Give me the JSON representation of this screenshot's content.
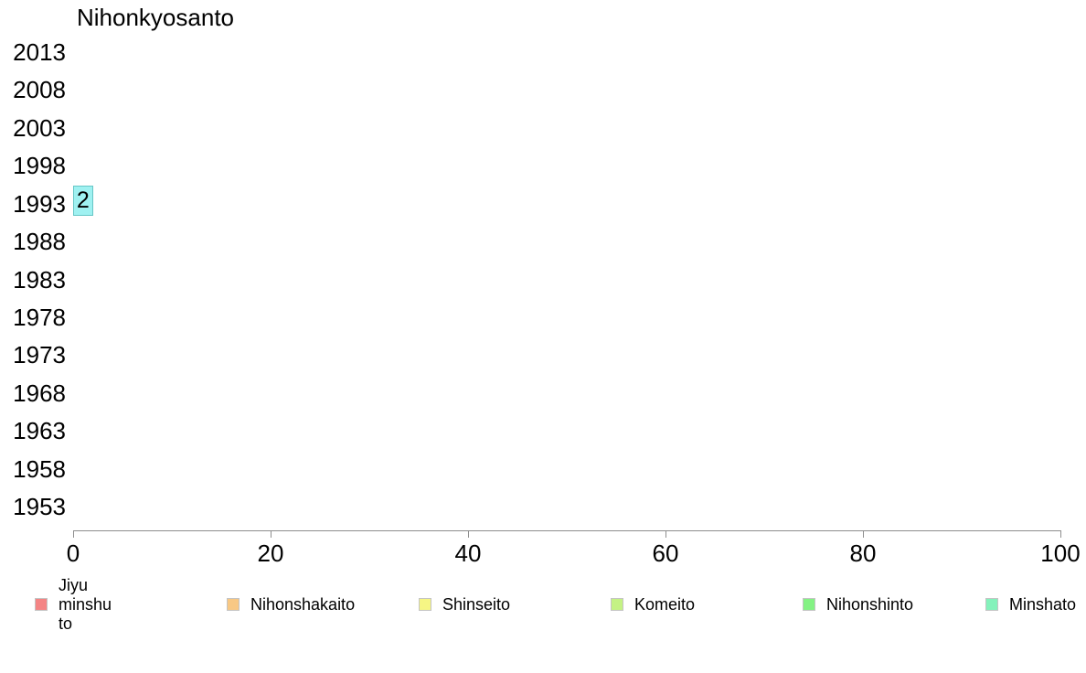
{
  "chart_data": {
    "type": "bar",
    "orientation": "horizontal",
    "title": "Nihonkyosanto",
    "categories": [
      "2013",
      "2008",
      "2003",
      "1998",
      "1993",
      "1988",
      "1983",
      "1978",
      "1973",
      "1968",
      "1963",
      "1958",
      "1953"
    ],
    "values": [
      0,
      0,
      0,
      0,
      2,
      0,
      0,
      0,
      0,
      0,
      0,
      0,
      0
    ],
    "bar_labels": [
      "",
      "",
      "",
      "",
      "2",
      "",
      "",
      "",
      "",
      "",
      "",
      "",
      ""
    ],
    "xlim": [
      0,
      100
    ],
    "x_tick_values": [
      0,
      20,
      40,
      60,
      80,
      100
    ],
    "x_tick_labels": [
      "0",
      "20",
      "40",
      "60",
      "80",
      "100"
    ],
    "grid": false,
    "legend_position": "bottom",
    "bar_fill_color": "#9ff1f1",
    "bar_border_color": "#66c6c6",
    "axis_color": "#8e8e8e",
    "text_color": "#000000",
    "legend": [
      {
        "label": "Jiyu minshu to",
        "color": "#f48484",
        "multiline": true
      },
      {
        "label": "Nihonshakaito",
        "color": "#f8c884",
        "multiline": false
      },
      {
        "label": "Shinseito",
        "color": "#f6f684",
        "multiline": false
      },
      {
        "label": "Komeito",
        "color": "#c4f284",
        "multiline": false
      },
      {
        "label": "Nihonshinto",
        "color": "#84f284",
        "multiline": false
      },
      {
        "label": "Minshato",
        "color": "#84f2bb",
        "multiline": false
      }
    ]
  }
}
